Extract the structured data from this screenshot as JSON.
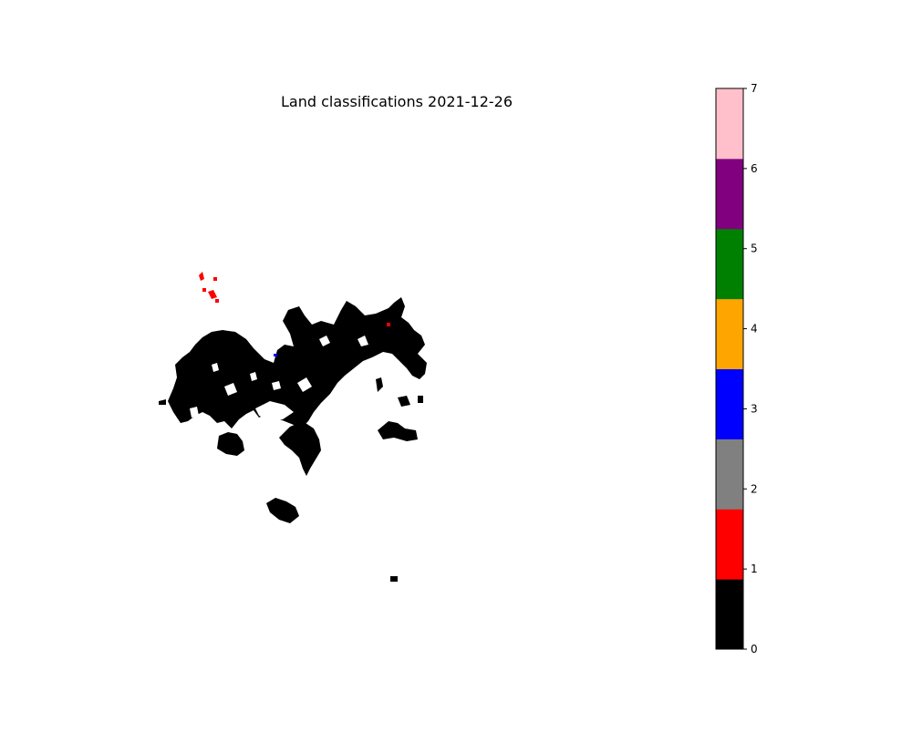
{
  "chart_data": {
    "type": "heatmap",
    "title": "Land classifications 2021-12-26",
    "colorbar": {
      "range": [
        0,
        7
      ],
      "ticks": [
        "0",
        "1",
        "2",
        "3",
        "4",
        "5",
        "6",
        "7"
      ],
      "colors": [
        "#000000",
        "#ff0000",
        "#808080",
        "#0000ff",
        "#ffa500",
        "#008000",
        "#800080",
        "#ffc0cb"
      ]
    },
    "axes_visible": false
  }
}
